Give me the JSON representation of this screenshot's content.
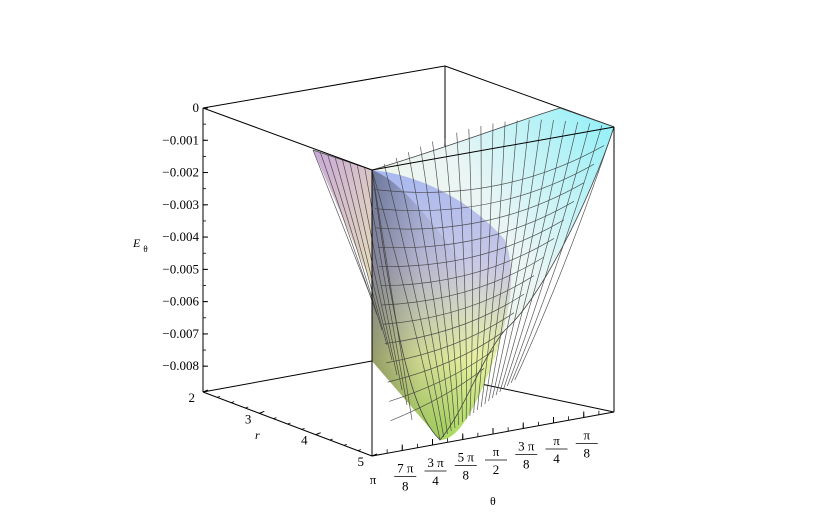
{
  "chart_data": {
    "type": "surface3d",
    "z_axis": {
      "label_main": "E",
      "label_sub": "θ",
      "ticks": [
        "0",
        "−0.001",
        "−0.002",
        "−0.003",
        "−0.004",
        "−0.005",
        "−0.006",
        "−0.007",
        "−0.008"
      ],
      "range": [
        -0.0088,
        0
      ]
    },
    "r_axis": {
      "label": "r",
      "ticks": [
        "2",
        "3",
        "4",
        "5"
      ],
      "range": [
        2,
        5
      ]
    },
    "theta_axis": {
      "label": "θ",
      "ticks": [
        {
          "num": "π",
          "den": ""
        },
        {
          "num": "7 π",
          "den": "8"
        },
        {
          "num": "3 π",
          "den": "4"
        },
        {
          "num": "5 π",
          "den": "8"
        },
        {
          "num": "π",
          "den": "2"
        },
        {
          "num": "3 π",
          "den": "8"
        },
        {
          "num": "π",
          "den": "4"
        },
        {
          "num": "π",
          "den": "8"
        }
      ],
      "range": [
        0.3927,
        3.1416
      ]
    },
    "surface": {
      "description_type": "valley with minimum at theta = pi/2, r = 5",
      "min_value": -0.0085,
      "min_theta": 1.5708,
      "min_r": 5
    },
    "colors": {
      "axis": "#000000",
      "mesh": "#3a3a3a"
    }
  }
}
